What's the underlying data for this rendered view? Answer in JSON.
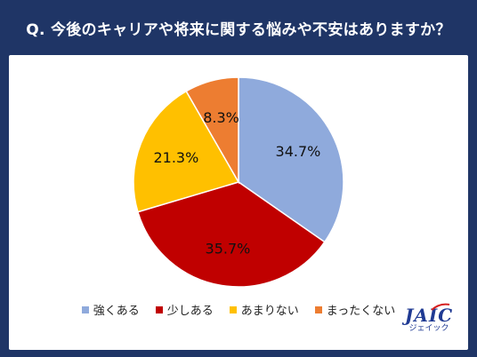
{
  "header": {
    "title": "Q. 今後のキャリアや将来に関する悩みや不安はありますか？"
  },
  "chart_data": {
    "type": "pie",
    "title": "",
    "categories": [
      "強くある",
      "少しある",
      "あまりない",
      "まったくない"
    ],
    "values": [
      34.7,
      35.7,
      21.3,
      8.3
    ],
    "labels": [
      "34.7%",
      "35.7%",
      "21.3%",
      "8.3%"
    ],
    "colors": [
      "#8faadc",
      "#c00000",
      "#ffc000",
      "#ed7d31"
    ],
    "start": "12 o'clock, clockwise",
    "legend": "bottom"
  },
  "logo": {
    "main": "JAIC",
    "sub": "ジェイック"
  }
}
